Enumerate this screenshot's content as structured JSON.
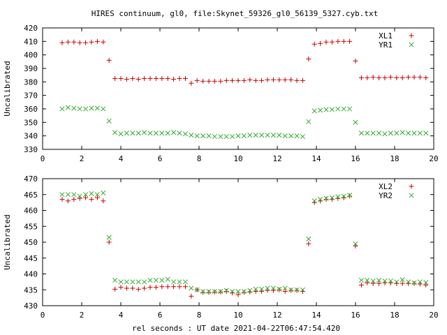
{
  "figure": {
    "title": "HIRES continuum, gl0, file:Skynet_59326_gl0_56139_5327.cyb.txt",
    "xlabel": "rel seconds : UT date 2021-04-22T06:47:54.420"
  },
  "chart_data": [
    {
      "type": "scatter",
      "ylabel": "Uncalibrated",
      "xlim": [
        0,
        20
      ],
      "ylim": [
        330,
        420
      ],
      "xticks": [
        0,
        2,
        4,
        6,
        8,
        10,
        12,
        14,
        16,
        18,
        20
      ],
      "yticks": [
        330,
        340,
        350,
        360,
        370,
        380,
        390,
        400,
        410,
        420
      ],
      "legend_position": "top-right",
      "grid": false,
      "x": [
        1.0,
        1.3,
        1.6,
        1.9,
        2.2,
        2.5,
        2.8,
        3.1,
        3.4,
        3.7,
        4.0,
        4.3,
        4.6,
        4.9,
        5.2,
        5.5,
        5.8,
        6.1,
        6.4,
        6.7,
        7.0,
        7.3,
        7.6,
        7.9,
        8.2,
        8.5,
        8.8,
        9.1,
        9.4,
        9.7,
        10.0,
        10.3,
        10.6,
        10.9,
        11.2,
        11.5,
        11.8,
        12.1,
        12.4,
        12.7,
        13.0,
        13.3,
        13.6,
        13.9,
        14.2,
        14.5,
        14.8,
        15.1,
        15.4,
        15.7,
        16.0,
        16.3,
        16.6,
        16.9,
        17.2,
        17.5,
        17.8,
        18.1,
        18.4,
        18.7,
        19.0,
        19.3,
        19.6
      ],
      "series": [
        {
          "name": "XL1",
          "marker": "plus",
          "color": "#cc0000",
          "values": [
            409,
            409.5,
            409.5,
            409,
            409,
            409.5,
            410,
            409.5,
            396,
            382.5,
            382.5,
            382,
            382.5,
            382,
            382.5,
            382.5,
            382.5,
            382.5,
            382.5,
            382,
            382.5,
            382.5,
            379,
            381,
            380.5,
            380.5,
            380.5,
            380.5,
            381,
            381,
            381,
            381,
            381.5,
            381,
            381,
            381.5,
            381.5,
            381.5,
            381.5,
            381.5,
            381,
            381,
            397,
            408,
            408.5,
            409.5,
            409.5,
            410,
            410,
            410,
            395.5,
            383,
            383,
            383.5,
            383,
            383,
            383.5,
            383,
            383,
            383.5,
            383.5,
            383.5,
            383
          ]
        },
        {
          "name": "YR1",
          "marker": "cross",
          "color": "#33aa33",
          "values": [
            360,
            361,
            360.5,
            360,
            360,
            360.5,
            360.5,
            360,
            351,
            342.5,
            341.5,
            342,
            342,
            342,
            342.5,
            342,
            342,
            342,
            342,
            342.5,
            342,
            341.5,
            340.5,
            340,
            340,
            340,
            339.5,
            339.5,
            339.5,
            339.5,
            340,
            340,
            340.5,
            340.5,
            340.5,
            340.5,
            340.5,
            340.5,
            340,
            340,
            340,
            339.5,
            350.5,
            358.5,
            359,
            359.5,
            359.5,
            360,
            360,
            360,
            350,
            342,
            342,
            342,
            342,
            341.5,
            342,
            342,
            342.5,
            342,
            342,
            342,
            342
          ]
        }
      ]
    },
    {
      "type": "scatter",
      "ylabel": "Uncalibrated",
      "xlim": [
        0,
        20
      ],
      "ylim": [
        430,
        470
      ],
      "xticks": [
        0,
        2,
        4,
        6,
        8,
        10,
        12,
        14,
        16,
        18,
        20
      ],
      "yticks": [
        430,
        435,
        440,
        445,
        450,
        455,
        460,
        465,
        470
      ],
      "legend_position": "top-right",
      "grid": false,
      "x": [
        1.0,
        1.3,
        1.6,
        1.9,
        2.2,
        2.5,
        2.8,
        3.1,
        3.4,
        3.7,
        4.0,
        4.3,
        4.6,
        4.9,
        5.2,
        5.5,
        5.8,
        6.1,
        6.4,
        6.7,
        7.0,
        7.3,
        7.6,
        7.9,
        8.2,
        8.5,
        8.8,
        9.1,
        9.4,
        9.7,
        10.0,
        10.3,
        10.6,
        10.9,
        11.2,
        11.5,
        11.8,
        12.1,
        12.4,
        12.7,
        13.0,
        13.3,
        13.6,
        13.9,
        14.2,
        14.5,
        14.8,
        15.1,
        15.4,
        15.7,
        16.0,
        16.3,
        16.6,
        16.9,
        17.2,
        17.5,
        17.8,
        18.1,
        18.4,
        18.7,
        19.0,
        19.3,
        19.6
      ],
      "series": [
        {
          "name": "XL2",
          "marker": "plus",
          "color": "#cc0000",
          "values": [
            463.5,
            463,
            463.5,
            463.8,
            464,
            463.5,
            464,
            463,
            450,
            435.2,
            435.8,
            435.5,
            435.5,
            435.2,
            435.5,
            435.8,
            435.8,
            436,
            436,
            436,
            436,
            436,
            433,
            435,
            434.2,
            434.2,
            434.3,
            434.3,
            434.5,
            434,
            433.5,
            434.2,
            434.3,
            434.5,
            434.5,
            434.8,
            434.8,
            435,
            434.5,
            434.8,
            434.8,
            434.5,
            449.5,
            462.5,
            463,
            463.5,
            463.5,
            463.8,
            464,
            464.5,
            448.8,
            436.5,
            437.2,
            437,
            437,
            437.2,
            437.2,
            437,
            437,
            437,
            437,
            436.8,
            436.5
          ]
        },
        {
          "name": "YR2",
          "marker": "cross",
          "color": "#33aa33",
          "values": [
            465,
            465,
            465,
            464.5,
            465,
            465.3,
            465,
            465.5,
            451.5,
            438,
            437.5,
            437.5,
            437.5,
            437.5,
            437.5,
            438,
            438,
            438,
            438.3,
            437.5,
            437.5,
            437.5,
            435.5,
            435,
            434.5,
            434.5,
            434.5,
            434.5,
            434.8,
            434.5,
            434.5,
            434.5,
            434.8,
            435.2,
            435.2,
            435.5,
            435.5,
            435.2,
            435.5,
            435,
            435,
            435,
            451,
            463,
            463.5,
            463.8,
            464,
            464.3,
            464.5,
            464.8,
            449.5,
            438,
            438,
            437.8,
            438,
            437.8,
            437.8,
            437.5,
            438.2,
            437.5,
            437.2,
            437.5,
            437.3
          ]
        }
      ]
    }
  ]
}
